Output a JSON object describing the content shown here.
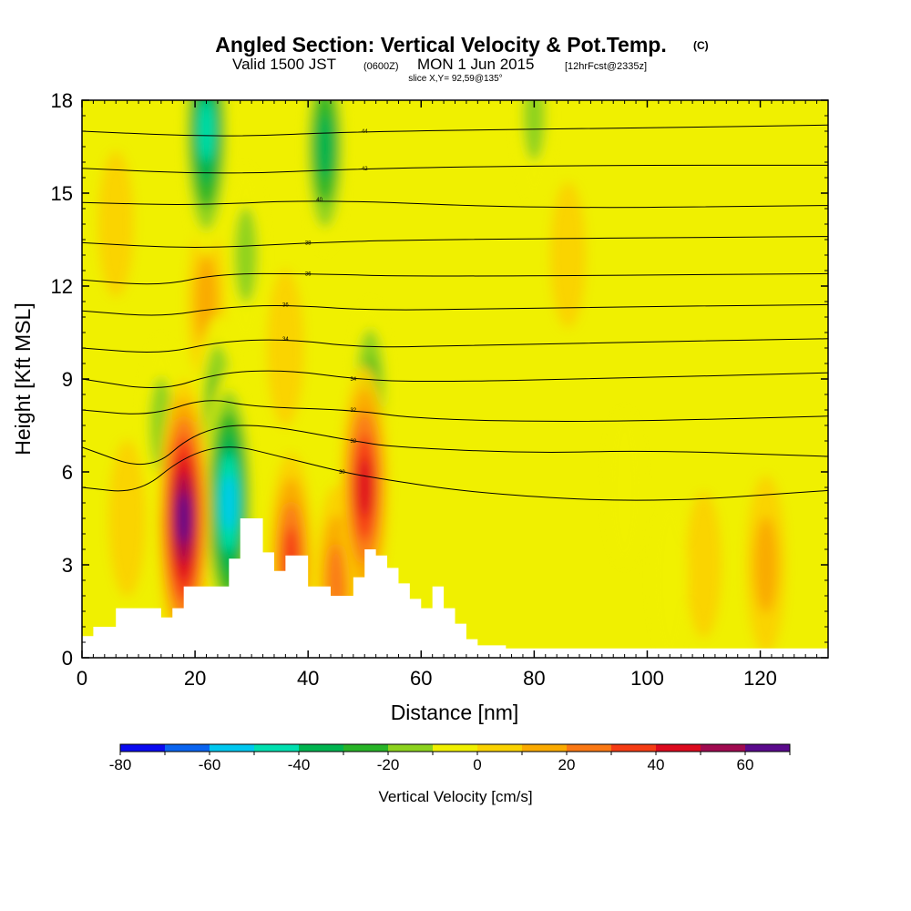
{
  "header": {
    "title": "Angled Section: Vertical Velocity & Pot.Temp.",
    "title_suffix": "(C)",
    "valid_prefix": "Valid 1500 JST",
    "valid_utc": "(0600Z)",
    "valid_date": "MON 1 Jun 2015",
    "forecast": "[12hrFcst@2335z]",
    "slice": "slice X,Y= 92,59@135°"
  },
  "chart_data": {
    "type": "heatmap",
    "title": "Angled Section: Vertical Velocity & Pot.Temp.",
    "xlabel": "Distance [nm]",
    "ylabel": "Height [Kft MSL]",
    "xlim": [
      0,
      132
    ],
    "ylim": [
      0,
      18
    ],
    "xticks": [
      0,
      20,
      40,
      60,
      80,
      100,
      120
    ],
    "yticks": [
      0,
      3,
      6,
      9,
      12,
      15,
      18
    ],
    "grid": false,
    "field": "Vertical Velocity [cm/s] (filled), Potential temperature [C] (contours)",
    "colorbar": {
      "label": "Vertical Velocity [cm/s]",
      "min": -80,
      "max": 70,
      "step": 10,
      "tick_values": [
        -80,
        -60,
        -40,
        -20,
        0,
        20,
        40,
        60
      ],
      "colors": [
        "#0a0af0",
        "#0a64f0",
        "#00c8f0",
        "#00e0b0",
        "#00b450",
        "#28b428",
        "#8cd21e",
        "#f0f000",
        "#fad200",
        "#faaa00",
        "#fa7814",
        "#f53c14",
        "#dc0a1e",
        "#a00a50",
        "#5a0a8c"
      ]
    },
    "terrain_kft": [
      [
        0,
        0.7
      ],
      [
        2,
        1
      ],
      [
        6,
        1.6
      ],
      [
        10,
        1.6
      ],
      [
        14,
        1.3
      ],
      [
        16,
        1.6
      ],
      [
        18,
        2.3
      ],
      [
        22,
        2.3
      ],
      [
        24,
        2.3
      ],
      [
        26,
        3.2
      ],
      [
        28,
        4.5
      ],
      [
        30,
        4.5
      ],
      [
        32,
        3.4
      ],
      [
        34,
        2.8
      ],
      [
        36,
        3.3
      ],
      [
        38,
        3.3
      ],
      [
        40,
        2.3
      ],
      [
        42,
        2.3
      ],
      [
        44,
        2.0
      ],
      [
        46,
        2.0
      ],
      [
        48,
        2.6
      ],
      [
        50,
        3.5
      ],
      [
        52,
        3.3
      ],
      [
        54,
        2.9
      ],
      [
        56,
        2.4
      ],
      [
        58,
        1.9
      ],
      [
        60,
        1.6
      ],
      [
        62,
        2.3
      ],
      [
        64,
        1.6
      ],
      [
        66,
        1.1
      ],
      [
        68,
        0.6
      ],
      [
        70,
        0.4
      ],
      [
        75,
        0.3
      ],
      [
        132,
        0.3
      ]
    ],
    "w_features": [
      {
        "x": 18,
        "z": 4.5,
        "w": 70
      },
      {
        "x": 26,
        "z": 5.0,
        "w": -65
      },
      {
        "x": 50,
        "z": 5.5,
        "w": 55
      },
      {
        "x": 22,
        "z": 17.0,
        "w": -55
      },
      {
        "x": 43,
        "z": 16.5,
        "w": -40
      },
      {
        "x": 37,
        "z": 3.2,
        "w": 40
      },
      {
        "x": 45,
        "z": 2.5,
        "w": 30
      },
      {
        "x": 51,
        "z": 8.5,
        "w": -30
      },
      {
        "x": 14,
        "z": 7.5,
        "w": -25
      },
      {
        "x": 24,
        "z": 8.0,
        "w": -30
      },
      {
        "x": 29,
        "z": 13.0,
        "w": -25
      },
      {
        "x": 80,
        "z": 17.5,
        "w": -20
      },
      {
        "x": 96,
        "z": 5.5,
        "w": -15
      },
      {
        "x": 104,
        "z": 2.5,
        "w": -15
      },
      {
        "x": 121,
        "z": 3.0,
        "w": 25
      },
      {
        "x": 8,
        "z": 4.5,
        "w": 15
      },
      {
        "x": 22,
        "z": 11.5,
        "w": 20
      },
      {
        "x": 36,
        "z": 10.0,
        "w": 15
      },
      {
        "x": 6,
        "z": 14.0,
        "w": 10
      },
      {
        "x": 86,
        "z": 13.0,
        "w": 10
      },
      {
        "x": 110,
        "z": 3.0,
        "w": 10
      }
    ],
    "theta_contours": [
      {
        "value": 30,
        "points": [
          [
            0,
            5.5
          ],
          [
            10,
            5.3
          ],
          [
            18,
            6.5
          ],
          [
            26,
            6.9
          ],
          [
            35,
            6.5
          ],
          [
            46,
            6.0
          ],
          [
            52,
            5.8
          ],
          [
            70,
            5.3
          ],
          [
            100,
            5.0
          ],
          [
            132,
            5.4
          ]
        ]
      },
      {
        "value": 32,
        "points": [
          [
            0,
            6.8
          ],
          [
            12,
            6.0
          ],
          [
            20,
            7.3
          ],
          [
            30,
            7.6
          ],
          [
            48,
            7.0
          ],
          [
            55,
            6.8
          ],
          [
            80,
            6.6
          ],
          [
            100,
            6.7
          ],
          [
            132,
            6.5
          ]
        ]
      },
      {
        "value": 32,
        "points": [
          [
            0,
            8.0
          ],
          [
            12,
            7.8
          ],
          [
            22,
            8.4
          ],
          [
            30,
            8.1
          ],
          [
            48,
            8.0
          ],
          [
            60,
            7.7
          ],
          [
            90,
            7.6
          ],
          [
            132,
            7.8
          ]
        ]
      },
      {
        "value": 34,
        "points": [
          [
            0,
            9.0
          ],
          [
            14,
            8.6
          ],
          [
            24,
            9.2
          ],
          [
            36,
            9.3
          ],
          [
            48,
            9.0
          ],
          [
            60,
            8.9
          ],
          [
            90,
            9.0
          ],
          [
            132,
            9.2
          ]
        ]
      },
      {
        "value": 34,
        "points": [
          [
            0,
            10.0
          ],
          [
            14,
            9.8
          ],
          [
            24,
            10.2
          ],
          [
            36,
            10.3
          ],
          [
            50,
            10.0
          ],
          [
            70,
            10.1
          ],
          [
            132,
            10.3
          ]
        ]
      },
      {
        "value": 36,
        "points": [
          [
            0,
            11.2
          ],
          [
            14,
            11.0
          ],
          [
            24,
            11.3
          ],
          [
            36,
            11.4
          ],
          [
            52,
            11.2
          ],
          [
            80,
            11.3
          ],
          [
            132,
            11.4
          ]
        ]
      },
      {
        "value": 36,
        "points": [
          [
            0,
            12.2
          ],
          [
            14,
            12.0
          ],
          [
            24,
            12.4
          ],
          [
            40,
            12.4
          ],
          [
            60,
            12.3
          ],
          [
            132,
            12.4
          ]
        ]
      },
      {
        "value": 38,
        "points": [
          [
            0,
            13.4
          ],
          [
            20,
            13.2
          ],
          [
            40,
            13.4
          ],
          [
            60,
            13.5
          ],
          [
            132,
            13.6
          ]
        ]
      },
      {
        "value": 40,
        "points": [
          [
            0,
            14.7
          ],
          [
            20,
            14.6
          ],
          [
            42,
            14.8
          ],
          [
            80,
            14.5
          ],
          [
            132,
            14.6
          ]
        ]
      },
      {
        "value": 42,
        "points": [
          [
            0,
            15.8
          ],
          [
            25,
            15.6
          ],
          [
            50,
            15.8
          ],
          [
            90,
            15.9
          ],
          [
            132,
            15.9
          ]
        ]
      },
      {
        "value": 44,
        "points": [
          [
            0,
            17.0
          ],
          [
            25,
            16.8
          ],
          [
            50,
            17.0
          ],
          [
            100,
            17.1
          ],
          [
            132,
            17.2
          ]
        ]
      }
    ]
  }
}
